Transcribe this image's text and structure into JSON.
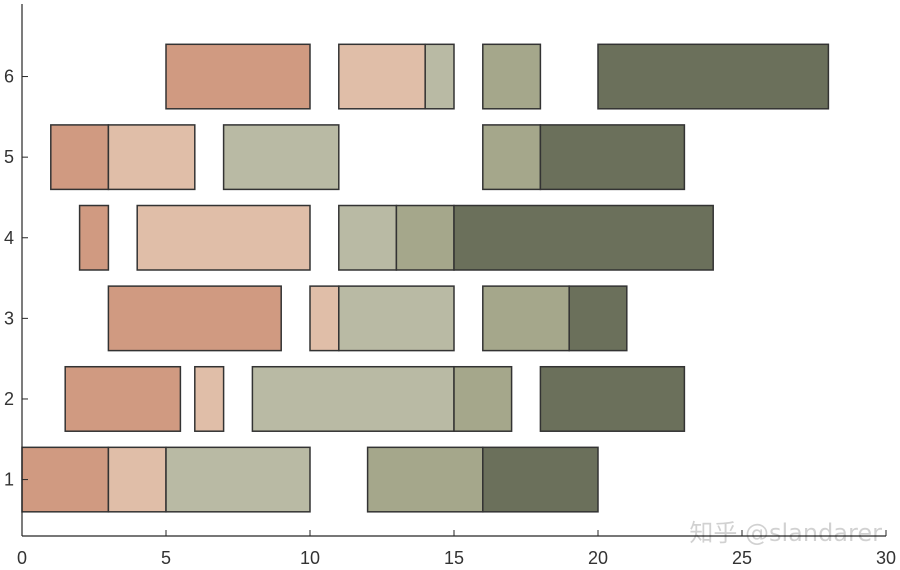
{
  "chart_data": {
    "type": "bar",
    "orientation": "horizontal",
    "title": "",
    "xlabel": "",
    "ylabel": "",
    "xlim": [
      0,
      30
    ],
    "ylim": [
      0.3,
      6.9
    ],
    "xticks": [
      0,
      5,
      10,
      15,
      20,
      25,
      30
    ],
    "yticks": [
      1,
      2,
      3,
      4,
      5,
      6
    ],
    "grid": false,
    "legend": "none",
    "colors": [
      "#d09a81",
      "#e0bea8",
      "#b9baa4",
      "#a5a78b",
      "#6b705b"
    ],
    "bar_stroke": "#333333",
    "segments": [
      {
        "row": 1,
        "start": 0,
        "end": 3,
        "color_index": 0
      },
      {
        "row": 1,
        "start": 3,
        "end": 5,
        "color_index": 1
      },
      {
        "row": 1,
        "start": 5,
        "end": 10,
        "color_index": 2
      },
      {
        "row": 1,
        "start": 12,
        "end": 16,
        "color_index": 3
      },
      {
        "row": 1,
        "start": 16,
        "end": 20,
        "color_index": 4
      },
      {
        "row": 2,
        "start": 1.5,
        "end": 5.5,
        "color_index": 0
      },
      {
        "row": 2,
        "start": 6,
        "end": 7,
        "color_index": 1
      },
      {
        "row": 2,
        "start": 8,
        "end": 15,
        "color_index": 2
      },
      {
        "row": 2,
        "start": 15,
        "end": 17,
        "color_index": 3
      },
      {
        "row": 2,
        "start": 18,
        "end": 23,
        "color_index": 4
      },
      {
        "row": 3,
        "start": 3,
        "end": 9,
        "color_index": 0
      },
      {
        "row": 3,
        "start": 10,
        "end": 11,
        "color_index": 1
      },
      {
        "row": 3,
        "start": 11,
        "end": 15,
        "color_index": 2
      },
      {
        "row": 3,
        "start": 16,
        "end": 19,
        "color_index": 3
      },
      {
        "row": 3,
        "start": 19,
        "end": 21,
        "color_index": 4
      },
      {
        "row": 4,
        "start": 2,
        "end": 3,
        "color_index": 0
      },
      {
        "row": 4,
        "start": 4,
        "end": 10,
        "color_index": 1
      },
      {
        "row": 4,
        "start": 11,
        "end": 13,
        "color_index": 2
      },
      {
        "row": 4,
        "start": 13,
        "end": 15,
        "color_index": 3
      },
      {
        "row": 4,
        "start": 15,
        "end": 24,
        "color_index": 4
      },
      {
        "row": 5,
        "start": 1,
        "end": 3,
        "color_index": 0
      },
      {
        "row": 5,
        "start": 3,
        "end": 6,
        "color_index": 1
      },
      {
        "row": 5,
        "start": 7,
        "end": 11,
        "color_index": 2
      },
      {
        "row": 5,
        "start": 16,
        "end": 18,
        "color_index": 3
      },
      {
        "row": 5,
        "start": 18,
        "end": 23,
        "color_index": 4
      },
      {
        "row": 6,
        "start": 5,
        "end": 10,
        "color_index": 0
      },
      {
        "row": 6,
        "start": 11,
        "end": 14,
        "color_index": 1
      },
      {
        "row": 6,
        "start": 14,
        "end": 15,
        "color_index": 2
      },
      {
        "row": 6,
        "start": 16,
        "end": 18,
        "color_index": 3
      },
      {
        "row": 6,
        "start": 20,
        "end": 28,
        "color_index": 4
      }
    ]
  },
  "watermark": "知乎 @slandarer"
}
